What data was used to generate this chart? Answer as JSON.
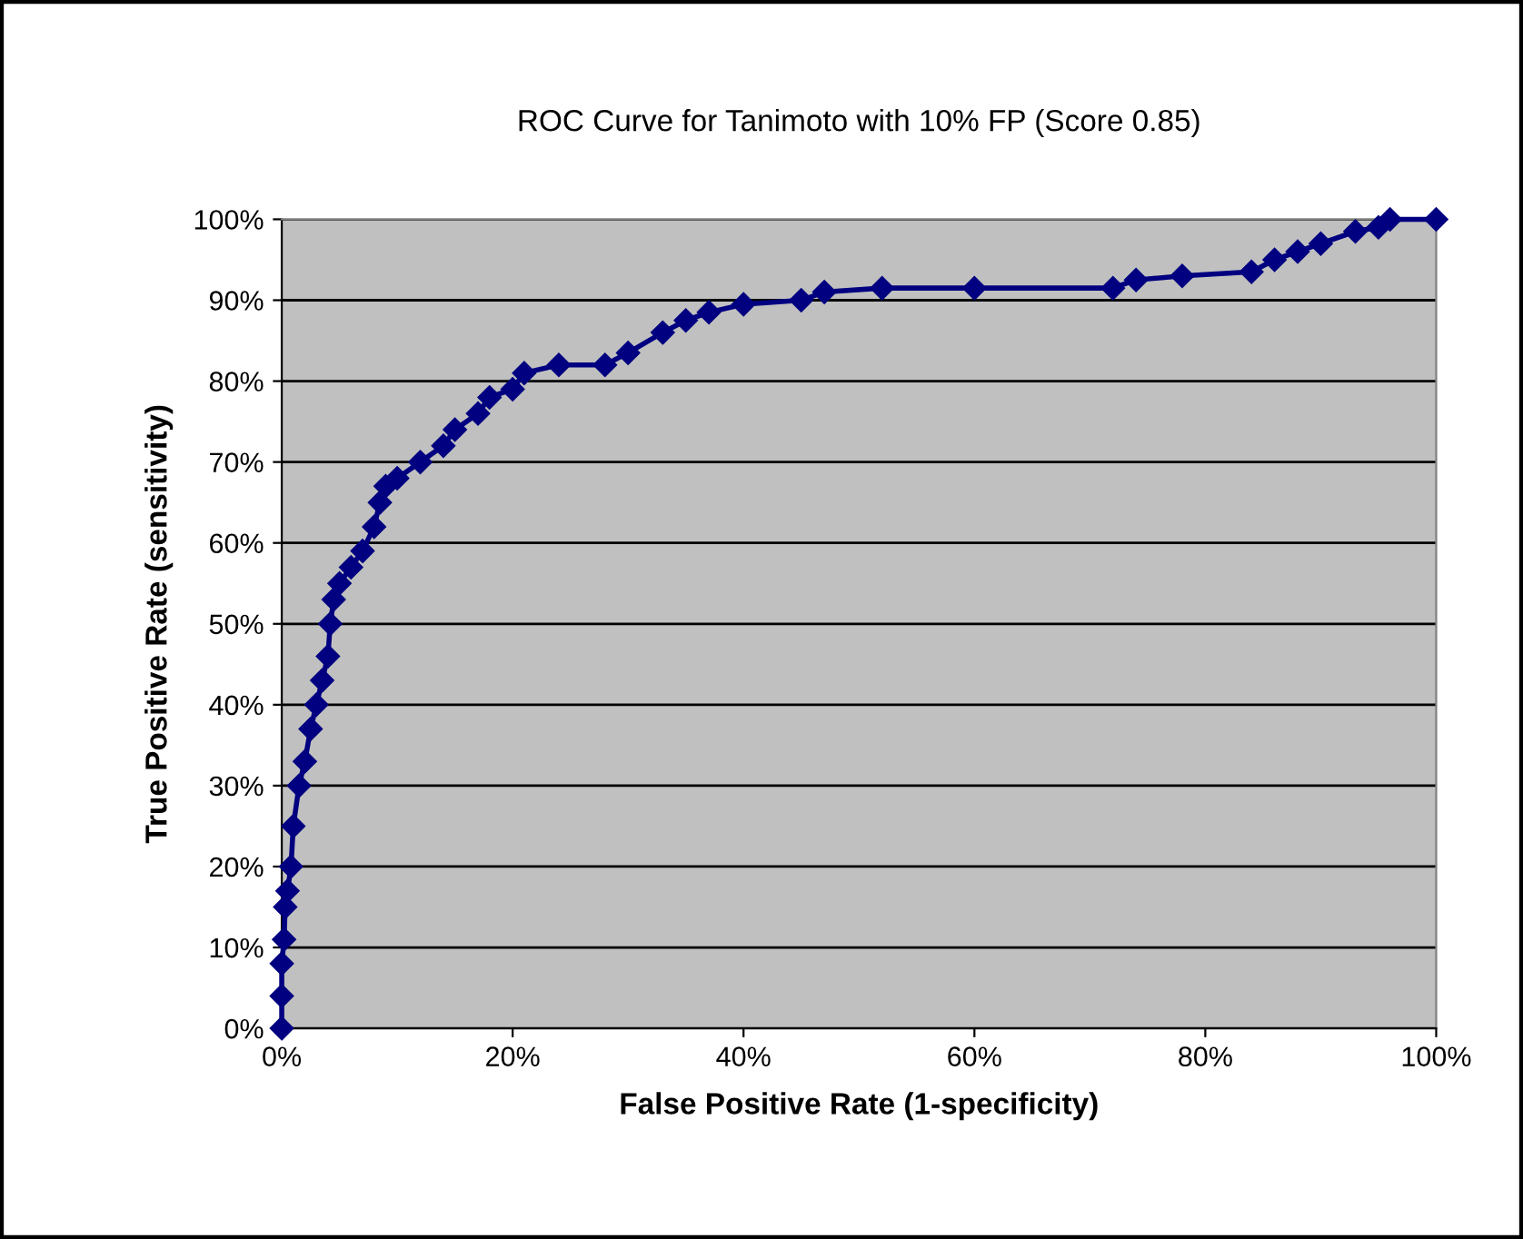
{
  "chart_data": {
    "type": "line",
    "title": "ROC Curve for Tanimoto with 10% FP (Score 0.85)",
    "xlabel": "False Positive Rate (1-specificity)",
    "ylabel": "True Positive Rate (sensitivity)",
    "x": [
      0,
      0,
      0,
      0.2,
      0.3,
      0.5,
      0.8,
      1,
      1.5,
      2,
      2.5,
      3,
      3.5,
      4,
      4.2,
      4.5,
      5,
      6,
      7,
      8,
      8.5,
      9,
      10,
      12,
      14,
      15,
      17,
      18,
      20,
      21,
      24,
      28,
      30,
      33,
      35,
      37,
      40,
      45,
      47,
      52,
      60,
      72,
      74,
      78,
      84,
      86,
      88,
      90,
      93,
      95,
      96,
      100
    ],
    "series": [
      {
        "color": "#000080",
        "values": [
          0,
          4,
          8,
          11,
          15,
          17,
          20,
          25,
          30,
          33,
          37,
          40,
          43,
          46,
          50,
          53,
          55,
          57,
          59,
          62,
          65,
          67,
          68,
          70,
          72,
          74,
          76,
          78,
          79,
          81,
          82,
          82,
          83.5,
          86,
          87.5,
          88.5,
          89.5,
          90,
          91,
          91.5,
          91.5,
          91.5,
          92.5,
          93,
          93.5,
          95,
          96,
          97,
          98.5,
          99,
          100,
          100
        ]
      }
    ],
    "xlim": [
      0,
      100
    ],
    "ylim": [
      0,
      100
    ],
    "xticks": [
      {
        "value": 0,
        "label": "0%"
      },
      {
        "value": 20,
        "label": "20%"
      },
      {
        "value": 40,
        "label": "40%"
      },
      {
        "value": 60,
        "label": "60%"
      },
      {
        "value": 80,
        "label": "80%"
      },
      {
        "value": 100,
        "label": "100%"
      }
    ],
    "yticks": [
      {
        "value": 0,
        "label": "0%"
      },
      {
        "value": 10,
        "label": "10%"
      },
      {
        "value": 20,
        "label": "20%"
      },
      {
        "value": 30,
        "label": "30%"
      },
      {
        "value": 40,
        "label": "40%"
      },
      {
        "value": 50,
        "label": "50%"
      },
      {
        "value": 60,
        "label": "60%"
      },
      {
        "value": 70,
        "label": "70%"
      },
      {
        "value": 80,
        "label": "80%"
      },
      {
        "value": 90,
        "label": "90%"
      },
      {
        "value": 100,
        "label": "100%"
      }
    ],
    "grid": "y",
    "marker": "diamond",
    "line_style": "solid",
    "legend": false
  }
}
